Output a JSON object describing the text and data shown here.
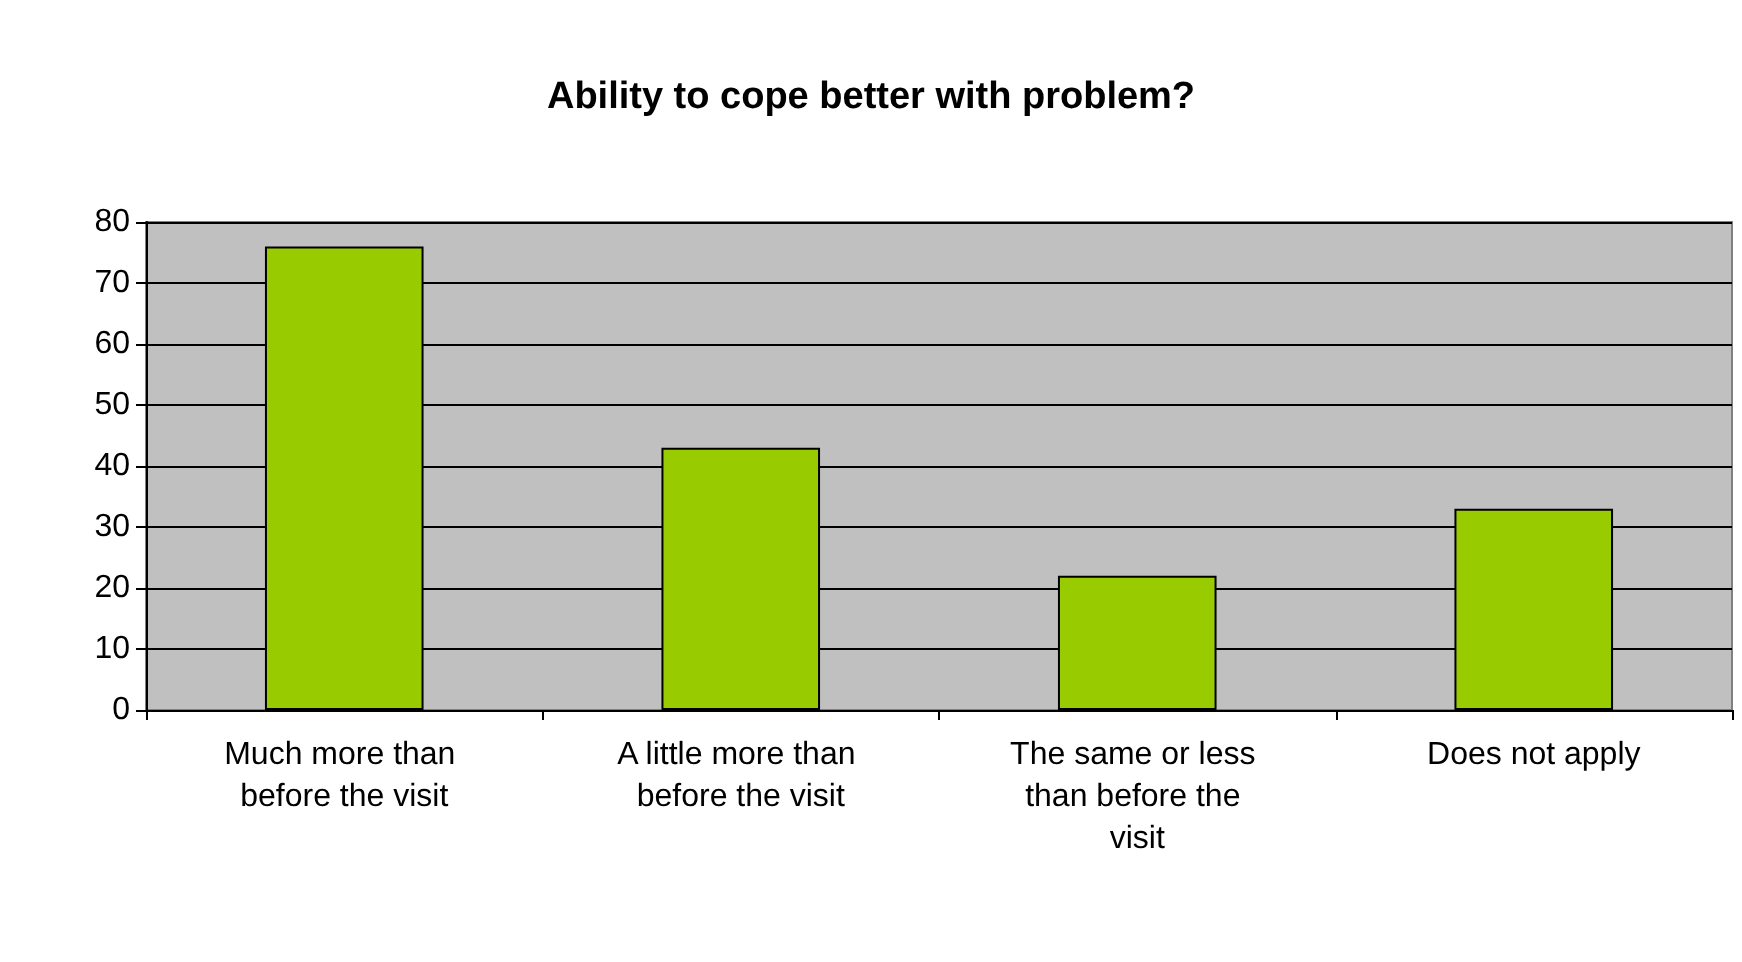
{
  "chart_data": {
    "type": "bar",
    "title": "Ability to cope better with problem?",
    "categories": [
      "Much more than before the visit",
      "A little more than before the visit",
      "The same or less than before the visit",
      "Does not apply"
    ],
    "values": [
      76,
      43,
      22,
      33
    ],
    "color": "#99cc00",
    "ylim": [
      0,
      80
    ],
    "yticks": [
      0,
      10,
      20,
      30,
      40,
      50,
      60,
      70,
      80
    ],
    "grid": "y"
  }
}
